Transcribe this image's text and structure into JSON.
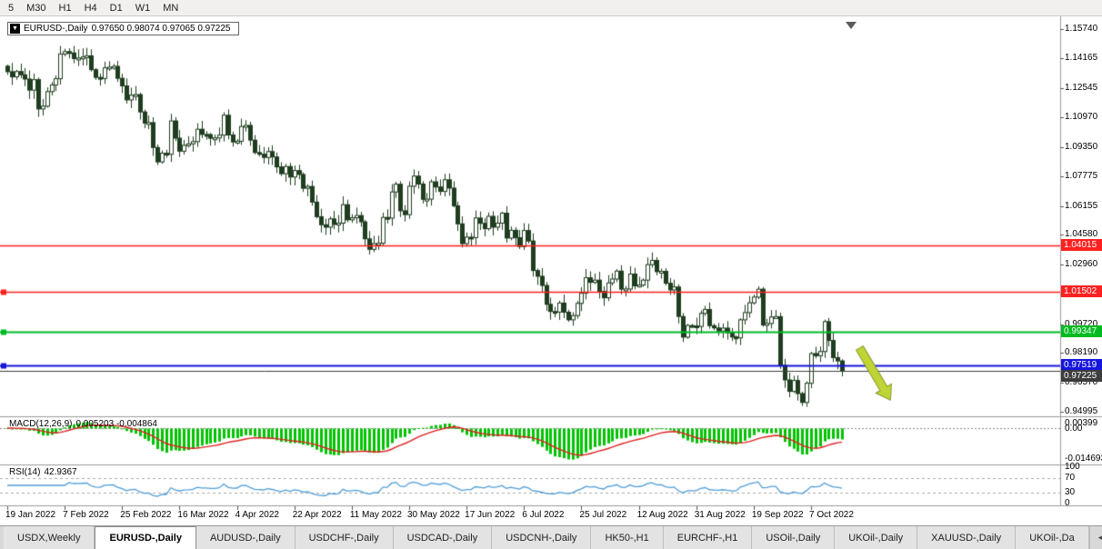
{
  "toolbar": {
    "timeframes": [
      "5",
      "M30",
      "H1",
      "H4",
      "D1",
      "W1",
      "MN"
    ]
  },
  "chart": {
    "symbol_period": "EURUSD-,Daily",
    "ohlc": "0.97650 0.98074 0.97065 0.97225",
    "y_axis_labels": [
      "1.15740",
      "1.14165",
      "1.12545",
      "1.10970",
      "1.09350",
      "1.07775",
      "1.06155",
      "1.04580",
      "1.02960",
      "1.01340",
      "0.99720",
      "0.98190",
      "0.96570",
      "0.94995"
    ]
  },
  "chart_data": {
    "type": "candlestick",
    "title": "EURUSD-,Daily",
    "y_range": [
      0.94995,
      1.1574
    ],
    "x_labels": [
      "19 Jan 2022",
      "7 Feb 2022",
      "25 Feb 2022",
      "16 Mar 2022",
      "4 Apr 2022",
      "22 Apr 2022",
      "11 May 2022",
      "30 May 2022",
      "17 Jun 2022",
      "6 Jul 2022",
      "25 Jul 2022",
      "12 Aug 2022",
      "31 Aug 2022",
      "19 Sep 2022",
      "7 Oct 2022"
    ],
    "label_step": 13,
    "last_ohlc": {
      "open": "0.97650",
      "high": "0.98074",
      "low": "0.97065",
      "close": "0.97225"
    },
    "closes": [
      1.1343,
      1.1315,
      1.1344,
      1.1326,
      1.1303,
      1.1243,
      1.13,
      1.1141,
      1.1156,
      1.1235,
      1.1271,
      1.1305,
      1.1439,
      1.1452,
      1.1445,
      1.1414,
      1.1417,
      1.1423,
      1.1429,
      1.1354,
      1.1312,
      1.1306,
      1.1364,
      1.1368,
      1.1372,
      1.1307,
      1.1266,
      1.119,
      1.1216,
      1.1219,
      1.1125,
      1.1064,
      1.1067,
      1.0932,
      1.0854,
      1.0901,
      1.0895,
      1.1076,
      1.0983,
      1.0912,
      1.0944,
      1.0952,
      1.0964,
      1.1031,
      1.1003,
      1.1002,
      1.0982,
      1.0984,
      1.0999,
      1.1107,
      1.1,
      1.0962,
      1.0966,
      1.1046,
      1.1052,
      1.0972,
      1.0905,
      1.0896,
      1.0878,
      1.091,
      1.0881,
      1.0827,
      1.079,
      1.0829,
      1.0772,
      1.0807,
      1.0786,
      1.0711,
      1.0721,
      1.0636,
      1.0557,
      1.0513,
      1.05,
      1.0545,
      1.0515,
      1.0522,
      1.0622,
      1.054,
      1.0551,
      1.0563,
      1.0529,
      1.0437,
      1.038,
      1.0411,
      1.0413,
      1.0553,
      1.0549,
      1.0691,
      1.0733,
      1.0589,
      1.0568,
      1.0722,
      1.0777,
      1.0734,
      1.0651,
      1.0652,
      1.0746,
      1.0718,
      1.0694,
      1.0757,
      1.0712,
      1.0616,
      1.0518,
      1.0411,
      1.0446,
      1.0444,
      1.055,
      1.0521,
      1.0492,
      1.0559,
      1.05,
      1.0522,
      1.0576,
      1.0441,
      1.0483,
      1.0443,
      1.0395,
      1.0482,
      1.0425,
      1.0265,
      1.0234,
      1.0184,
      1.0082,
      1.0043,
      1.004,
      1.0089,
      1.0039,
      0.9998,
      1.0021,
      1.0087,
      1.0142,
      1.0226,
      1.0201,
      1.0213,
      1.0152,
      1.0117,
      1.0198,
      1.0219,
      1.0262,
      1.0164,
      1.0165,
      1.0246,
      1.0182,
      1.0186,
      1.0213,
      1.0297,
      1.032,
      1.0259,
      1.0261,
      1.0196,
      1.016,
      1.0176,
      1.0016,
      0.9904,
      0.9967,
      0.9965,
      0.9962,
      1.0033,
      1.0054,
      0.9966,
      0.9954,
      0.9937,
      0.9953,
      0.9927,
      0.9905,
      0.99,
      0.9998,
      1.0037,
      1.009,
      1.0121,
      1.0164,
      0.997,
      0.9978,
      1.0013,
      1.0015,
      0.9752,
      0.9672,
      0.961,
      0.9669,
      0.9598,
      0.955,
      0.9654,
      0.9815,
      0.9803,
      0.9826,
      0.9988,
      0.9886,
      0.9793,
      0.9775,
      0.9722
    ],
    "levels": [
      {
        "label": "1.04015",
        "value": 1.04015,
        "color": "#ff2020",
        "width": 1.3,
        "handle": false
      },
      {
        "label": "1.01502",
        "value": 1.01502,
        "color": "#ff2020",
        "width": 1.3,
        "handle": true
      },
      {
        "label": "0.99347",
        "value": 0.99347,
        "color": "#00bb22",
        "width": 1.8,
        "handle": true
      },
      {
        "label": "0.97519",
        "value": 0.97519,
        "color": "#1515dd",
        "width": 1.8,
        "handle": true
      },
      {
        "label": "0.97225",
        "value": 0.97225,
        "color": "#3d3d3d",
        "width": 1.0,
        "handle": false
      }
    ],
    "annotations": [
      {
        "type": "arrow",
        "direction": "down-right",
        "color": "#bfd435",
        "from": {
          "index": 193,
          "price": 0.9845
        },
        "to": {
          "index": 200,
          "price": 0.9562
        }
      }
    ],
    "indicators": [
      {
        "type": "macd",
        "params": [
          12,
          26,
          9
        ],
        "current_values": "0.005203 -0.004864"
      },
      {
        "type": "rsi",
        "params": [
          14
        ],
        "current_value": "42.9367",
        "guide_levels": [
          70,
          30
        ]
      }
    ]
  },
  "macd": {
    "name": "MACD(12,26,9)",
    "values": "0.005203 -0.004864",
    "axis_labels": [
      {
        "text": "0.00399",
        "pos": "top"
      },
      {
        "text": "0.00",
        "pos": "zero"
      },
      {
        "text": "-0.014693",
        "pos": "bottom"
      }
    ],
    "colors": {
      "histogram": "#00c400",
      "signal": "#e02020"
    }
  },
  "rsi": {
    "name": "RSI(14)",
    "value": "42.9367",
    "axis_labels": [
      "100",
      "70",
      "30",
      "0"
    ],
    "guide_levels": [
      70,
      30
    ],
    "color": "#4f9ed9"
  },
  "colors": {
    "candle_up": "#ffffff",
    "candle_down": "#1f3d1f",
    "candle_border": "#1f3d1f"
  },
  "tabs": {
    "items": [
      {
        "label": "USDX,Weekly",
        "active": false
      },
      {
        "label": "EURUSD-,Daily",
        "active": true
      },
      {
        "label": "AUDUSD-,Daily",
        "active": false
      },
      {
        "label": "USDCHF-,Daily",
        "active": false
      },
      {
        "label": "USDCAD-,Daily",
        "active": false
      },
      {
        "label": "USDCNH-,Daily",
        "active": false
      },
      {
        "label": "HK50-,H1",
        "active": false
      },
      {
        "label": "EURCHF-,H1",
        "active": false
      },
      {
        "label": "USOil-,Daily",
        "active": false
      },
      {
        "label": "UKOil-,Daily",
        "active": false
      },
      {
        "label": "XAUUSD-,Daily",
        "active": false
      },
      {
        "label": "UKOil-,Da",
        "active": false
      }
    ],
    "scroll_left_icon": "◀"
  }
}
